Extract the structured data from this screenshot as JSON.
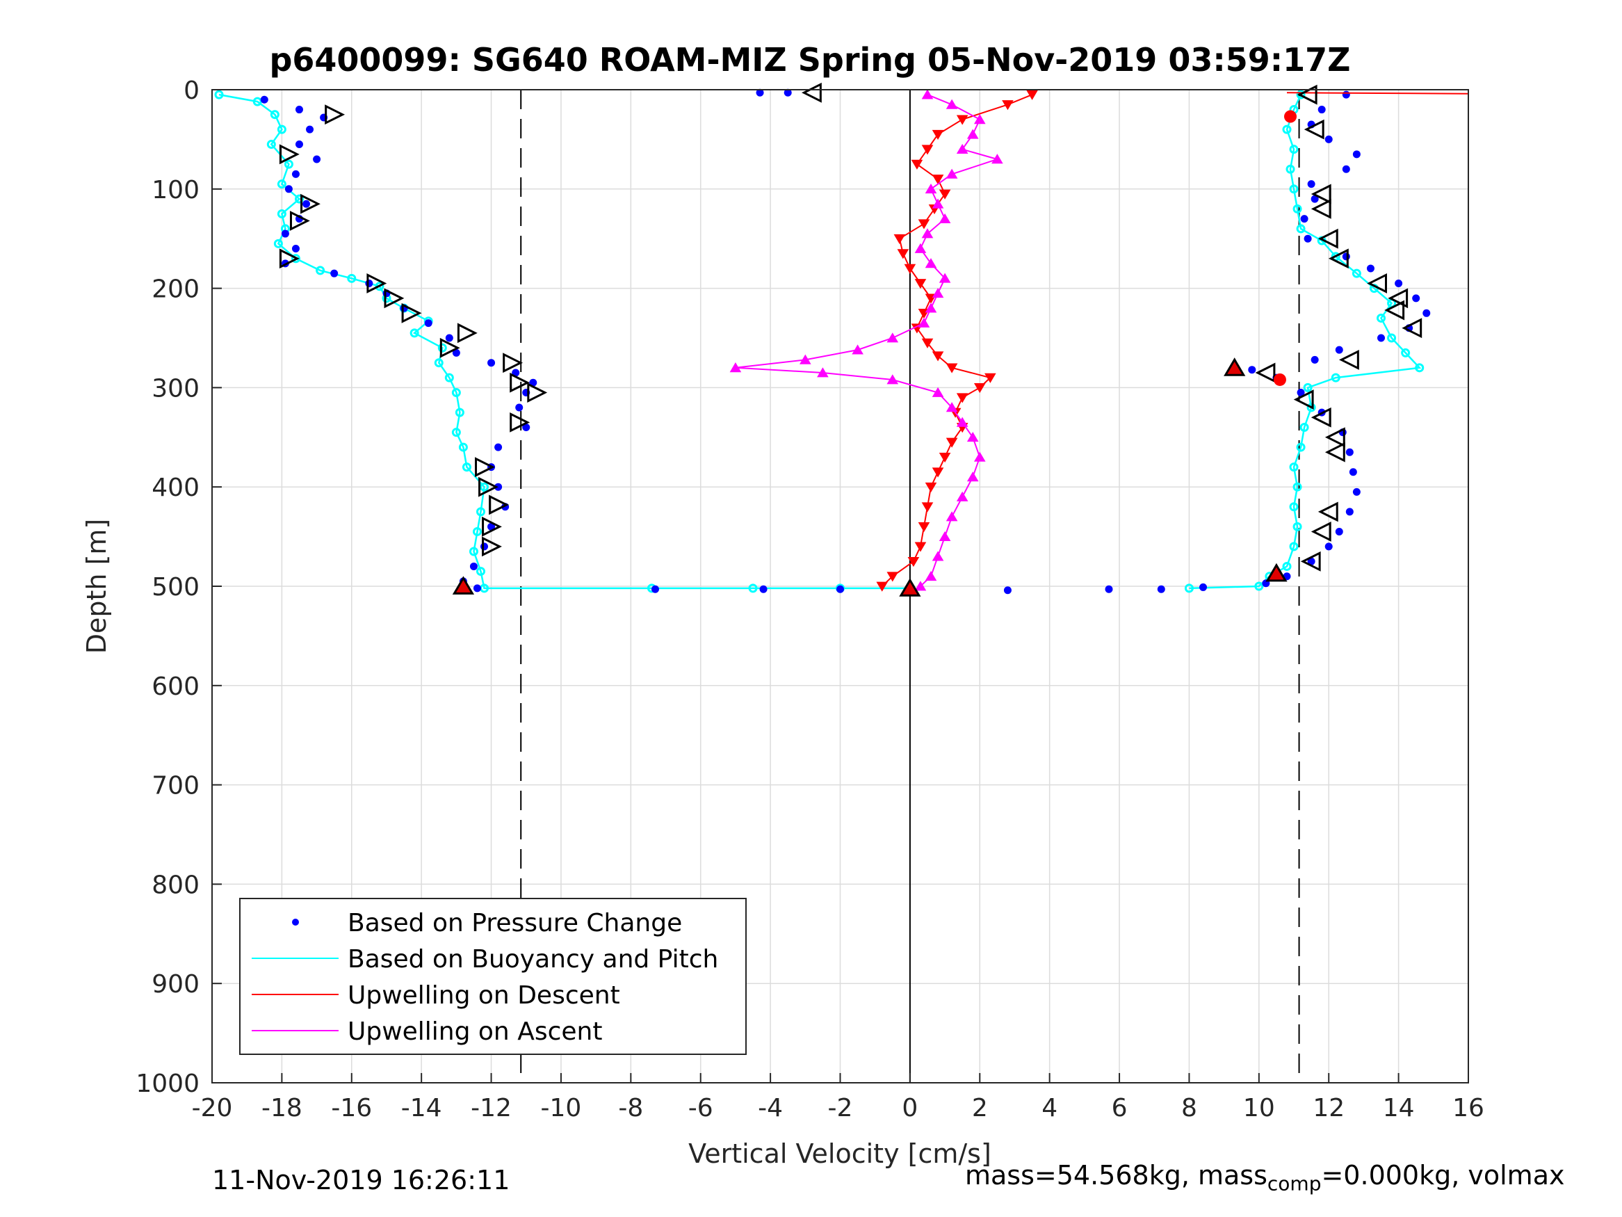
{
  "chart_data": {
    "type": "scatter",
    "title": "p6400099: SG640 ROAM-MIZ Spring 05-Nov-2019 03:59:17Z",
    "xlabel": "Vertical Velocity [cm/s]",
    "ylabel": "Depth [m]",
    "xlim": [
      -20,
      16
    ],
    "ylim": [
      0,
      1000
    ],
    "y_reversed": true,
    "grid": true,
    "legend_position": "bottom-left",
    "x_ticks": [
      "-20",
      "-18",
      "-16",
      "-14",
      "-12",
      "-10",
      "-8",
      "-6",
      "-4",
      "-2",
      "0",
      "2",
      "4",
      "6",
      "8",
      "10",
      "12",
      "14",
      "16"
    ],
    "y_ticks": [
      "0",
      "100",
      "200",
      "300",
      "400",
      "500",
      "600",
      "700",
      "800",
      "900",
      "1000"
    ],
    "reference_lines": [
      {
        "style": "dashed",
        "x": -11.15
      },
      {
        "style": "dashed",
        "x": 11.15
      },
      {
        "style": "solid",
        "x": 0
      }
    ],
    "series": [
      {
        "name": "Based on Pressure Change",
        "color": "#0000ff",
        "marker": "dot",
        "descent": [
          [
            -18.5,
            10
          ],
          [
            -17.5,
            20
          ],
          [
            -16.8,
            28
          ],
          [
            -17.2,
            40
          ],
          [
            -17.5,
            55
          ],
          [
            -17.0,
            70
          ],
          [
            -17.6,
            85
          ],
          [
            -17.8,
            100
          ],
          [
            -17.3,
            115
          ],
          [
            -17.5,
            130
          ],
          [
            -17.9,
            145
          ],
          [
            -17.6,
            160
          ],
          [
            -17.9,
            175
          ],
          [
            -16.5,
            185
          ],
          [
            -15.5,
            195
          ],
          [
            -15.0,
            205
          ],
          [
            -14.5,
            220
          ],
          [
            -13.8,
            235
          ],
          [
            -13.2,
            250
          ],
          [
            -13.0,
            265
          ],
          [
            -12.0,
            275
          ],
          [
            -11.3,
            285
          ],
          [
            -10.8,
            295
          ],
          [
            -11.0,
            305
          ],
          [
            -11.2,
            320
          ],
          [
            -11.0,
            340
          ],
          [
            -11.8,
            360
          ],
          [
            -12.0,
            380
          ],
          [
            -11.8,
            400
          ],
          [
            -11.6,
            420
          ],
          [
            -12.0,
            440
          ],
          [
            -12.2,
            460
          ],
          [
            -12.5,
            480
          ],
          [
            -12.8,
            495
          ],
          [
            -12.4,
            502
          ],
          [
            -7.3,
            503
          ],
          [
            -4.2,
            503
          ],
          [
            -2.0,
            503
          ]
        ],
        "ascent": [
          [
            2.8,
            504
          ],
          [
            5.7,
            503
          ],
          [
            7.2,
            503
          ],
          [
            8.4,
            501
          ],
          [
            10.2,
            497
          ],
          [
            10.8,
            490
          ],
          [
            11.5,
            475
          ],
          [
            12.0,
            460
          ],
          [
            12.3,
            445
          ],
          [
            12.6,
            425
          ],
          [
            12.8,
            405
          ],
          [
            12.7,
            385
          ],
          [
            12.6,
            365
          ],
          [
            12.4,
            345
          ],
          [
            11.8,
            325
          ],
          [
            11.2,
            305
          ],
          [
            10.5,
            290
          ],
          [
            9.8,
            282
          ],
          [
            11.6,
            272
          ],
          [
            12.3,
            262
          ],
          [
            13.5,
            250
          ],
          [
            14.3,
            240
          ],
          [
            14.8,
            225
          ],
          [
            14.5,
            210
          ],
          [
            14.0,
            195
          ],
          [
            13.2,
            180
          ],
          [
            12.5,
            168
          ],
          [
            11.4,
            150
          ],
          [
            11.3,
            130
          ],
          [
            11.6,
            110
          ],
          [
            11.5,
            95
          ],
          [
            12.5,
            80
          ],
          [
            12.8,
            65
          ],
          [
            12.0,
            50
          ],
          [
            11.5,
            35
          ],
          [
            11.8,
            20
          ],
          [
            12.5,
            5
          ],
          [
            -4.3,
            3
          ],
          [
            -3.5,
            3
          ]
        ]
      },
      {
        "name": "Based on Buoyancy and Pitch",
        "color": "#00ffff",
        "marker": "circle-line",
        "descent": [
          [
            -19.8,
            5
          ],
          [
            -18.7,
            12
          ],
          [
            -18.2,
            25
          ],
          [
            -18.0,
            40
          ],
          [
            -18.3,
            55
          ],
          [
            -17.8,
            75
          ],
          [
            -18.0,
            95
          ],
          [
            -17.5,
            110
          ],
          [
            -18.0,
            125
          ],
          [
            -17.9,
            140
          ],
          [
            -18.1,
            155
          ],
          [
            -17.6,
            170
          ],
          [
            -16.9,
            182
          ],
          [
            -16.0,
            190
          ],
          [
            -15.2,
            198
          ],
          [
            -15.0,
            210
          ],
          [
            -14.5,
            220
          ],
          [
            -13.8,
            233
          ],
          [
            -14.2,
            245
          ],
          [
            -13.4,
            260
          ],
          [
            -13.5,
            275
          ],
          [
            -13.2,
            290
          ],
          [
            -13.0,
            305
          ],
          [
            -12.9,
            325
          ],
          [
            -13.0,
            345
          ],
          [
            -12.8,
            360
          ],
          [
            -12.7,
            380
          ],
          [
            -12.2,
            400
          ],
          [
            -12.3,
            425
          ],
          [
            -12.4,
            445
          ],
          [
            -12.5,
            465
          ],
          [
            -12.3,
            485
          ],
          [
            -12.2,
            502
          ],
          [
            -7.4,
            502
          ],
          [
            -4.5,
            502
          ],
          [
            -2.0,
            502
          ],
          [
            0.0,
            502
          ]
        ],
        "ascent": [
          [
            8.0,
            502
          ],
          [
            10.0,
            500
          ],
          [
            10.3,
            490
          ],
          [
            10.8,
            480
          ],
          [
            11.0,
            460
          ],
          [
            11.1,
            440
          ],
          [
            11.0,
            420
          ],
          [
            11.1,
            400
          ],
          [
            11.0,
            380
          ],
          [
            11.2,
            360
          ],
          [
            11.3,
            340
          ],
          [
            11.5,
            320
          ],
          [
            11.4,
            300
          ],
          [
            12.2,
            290
          ],
          [
            14.6,
            280
          ],
          [
            14.2,
            265
          ],
          [
            13.8,
            250
          ],
          [
            13.5,
            230
          ],
          [
            13.8,
            215
          ],
          [
            13.3,
            200
          ],
          [
            12.8,
            185
          ],
          [
            12.2,
            168
          ],
          [
            11.8,
            152
          ],
          [
            11.2,
            140
          ],
          [
            11.1,
            120
          ],
          [
            11.0,
            100
          ],
          [
            10.9,
            80
          ],
          [
            11.0,
            60
          ],
          [
            10.8,
            40
          ],
          [
            11.0,
            20
          ],
          [
            11.2,
            5
          ]
        ]
      },
      {
        "name": "Upwelling on Descent",
        "color": "#ff0000",
        "marker": "triangle-down",
        "points": [
          [
            3.5,
            5
          ],
          [
            2.8,
            15
          ],
          [
            1.5,
            30
          ],
          [
            0.8,
            45
          ],
          [
            0.5,
            60
          ],
          [
            0.2,
            75
          ],
          [
            0.8,
            90
          ],
          [
            1.0,
            105
          ],
          [
            0.7,
            120
          ],
          [
            0.4,
            135
          ],
          [
            -0.3,
            150
          ],
          [
            -0.2,
            165
          ],
          [
            0.0,
            180
          ],
          [
            0.3,
            195
          ],
          [
            0.6,
            210
          ],
          [
            0.4,
            225
          ],
          [
            0.2,
            240
          ],
          [
            0.5,
            255
          ],
          [
            0.8,
            268
          ],
          [
            1.2,
            280
          ],
          [
            2.3,
            290
          ],
          [
            2.0,
            300
          ],
          [
            1.5,
            310
          ],
          [
            1.3,
            325
          ],
          [
            1.5,
            340
          ],
          [
            1.2,
            355
          ],
          [
            1.0,
            370
          ],
          [
            0.8,
            385
          ],
          [
            0.6,
            400
          ],
          [
            0.5,
            420
          ],
          [
            0.4,
            440
          ],
          [
            0.3,
            460
          ],
          [
            0.1,
            475
          ],
          [
            -0.5,
            490
          ],
          [
            -0.8,
            500
          ]
        ]
      },
      {
        "name": "Upwelling on Ascent",
        "color": "#ff00ff",
        "marker": "triangle-up",
        "points": [
          [
            0.5,
            5
          ],
          [
            1.2,
            15
          ],
          [
            2.0,
            30
          ],
          [
            1.8,
            45
          ],
          [
            1.5,
            60
          ],
          [
            2.5,
            70
          ],
          [
            1.2,
            85
          ],
          [
            0.6,
            100
          ],
          [
            0.8,
            115
          ],
          [
            1.0,
            130
          ],
          [
            0.5,
            145
          ],
          [
            0.3,
            160
          ],
          [
            0.6,
            175
          ],
          [
            1.0,
            190
          ],
          [
            0.8,
            205
          ],
          [
            0.6,
            220
          ],
          [
            0.4,
            235
          ],
          [
            -0.5,
            250
          ],
          [
            -1.5,
            262
          ],
          [
            -3.0,
            272
          ],
          [
            -5.0,
            280
          ],
          [
            -2.5,
            285
          ],
          [
            -0.5,
            292
          ],
          [
            0.8,
            305
          ],
          [
            1.2,
            320
          ],
          [
            1.5,
            335
          ],
          [
            1.8,
            350
          ],
          [
            2.0,
            370
          ],
          [
            1.8,
            390
          ],
          [
            1.5,
            410
          ],
          [
            1.2,
            430
          ],
          [
            1.0,
            450
          ],
          [
            0.8,
            470
          ],
          [
            0.6,
            490
          ],
          [
            0.3,
            500
          ]
        ]
      }
    ],
    "markers": {
      "open_triangles_descent": [
        [
          -16.5,
          25
        ],
        [
          -17.8,
          65
        ],
        [
          -17.2,
          115
        ],
        [
          -17.5,
          132
        ],
        [
          -17.8,
          170
        ],
        [
          -15.3,
          195
        ],
        [
          -14.8,
          210
        ],
        [
          -14.3,
          225
        ],
        [
          -12.7,
          245
        ],
        [
          -13.2,
          260
        ],
        [
          -11.4,
          275
        ],
        [
          -11.2,
          295
        ],
        [
          -10.7,
          305
        ],
        [
          -11.2,
          335
        ],
        [
          -12.2,
          380
        ],
        [
          -12.1,
          400
        ],
        [
          -11.8,
          418
        ],
        [
          -12.0,
          440
        ],
        [
          -12.0,
          460
        ]
      ],
      "open_triangles_ascent": [
        [
          -2.8,
          3
        ],
        [
          11.4,
          5
        ],
        [
          11.6,
          40
        ],
        [
          11.8,
          105
        ],
        [
          11.8,
          120
        ],
        [
          12.0,
          150
        ],
        [
          12.3,
          170
        ],
        [
          13.4,
          195
        ],
        [
          14.0,
          210
        ],
        [
          13.9,
          222
        ],
        [
          14.4,
          240
        ],
        [
          12.6,
          272
        ],
        [
          10.2,
          285
        ],
        [
          11.3,
          312
        ],
        [
          11.8,
          330
        ],
        [
          12.2,
          350
        ],
        [
          12.2,
          365
        ],
        [
          12.0,
          425
        ],
        [
          11.8,
          445
        ],
        [
          11.5,
          475
        ]
      ],
      "red_triangles": [
        [
          -12.8,
          500
        ],
        [
          0.0,
          502
        ],
        [
          9.3,
          280
        ],
        [
          10.5,
          487
        ]
      ],
      "red_dots": [
        [
          10.9,
          27
        ],
        [
          10.6,
          292
        ]
      ]
    }
  },
  "footer": {
    "date": "11-Nov-2019 16:26:11",
    "mass_prefix": "mass=54.568kg, mass",
    "mass_sub": "comp",
    "mass_suffix": "=0.000kg, volmax"
  }
}
